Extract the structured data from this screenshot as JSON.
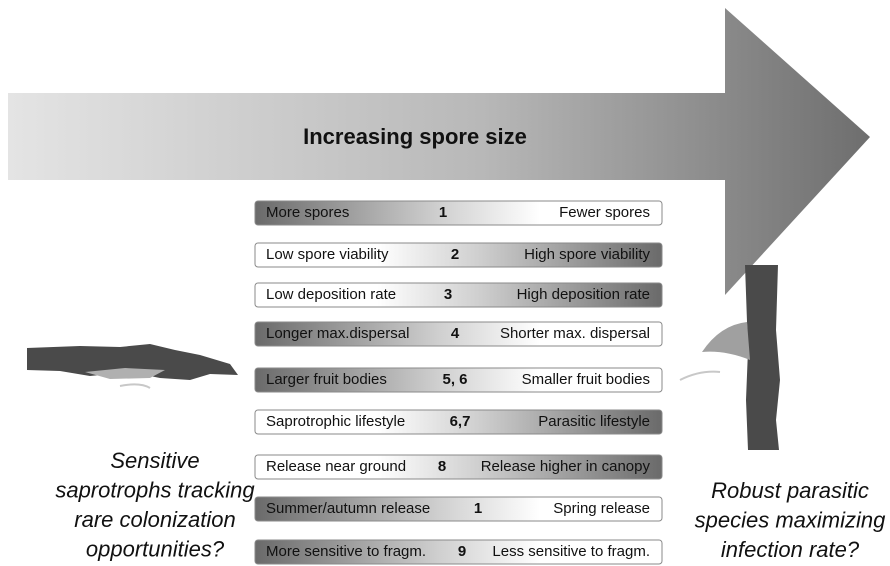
{
  "arrow_label": "Increasing spore size",
  "rows": [
    {
      "left": "More spores",
      "ref": "1",
      "right": "Fewer spores"
    },
    {
      "left": "Low spore viability",
      "ref": "2",
      "right": "High spore viability"
    },
    {
      "left": "Low deposition rate",
      "ref": "3",
      "right": "High deposition rate"
    },
    {
      "left": "Longer max.dispersal",
      "ref": "4",
      "right": "Shorter max. dispersal"
    },
    {
      "left": "Larger fruit bodies",
      "ref": "5, 6",
      "right": "Smaller fruit bodies"
    },
    {
      "left": "Saprotrophic lifestyle",
      "ref": "6,7",
      "right": "Parasitic lifestyle"
    },
    {
      "left": "Release near ground",
      "ref": "8",
      "right": "Release higher in canopy"
    },
    {
      "left": "Summer/autumn  release",
      "ref": "1",
      "right": "Spring release"
    },
    {
      "left": "More sensitive to fragm.",
      "ref": "9",
      "right": "Less sensitive to fragm."
    }
  ],
  "left_caption": [
    "Sensitive",
    "saprotrophs tracking",
    "rare colonization",
    "opportunities?"
  ],
  "right_caption": [
    "Robust parasitic",
    "species maximizing",
    "infection rate?"
  ]
}
